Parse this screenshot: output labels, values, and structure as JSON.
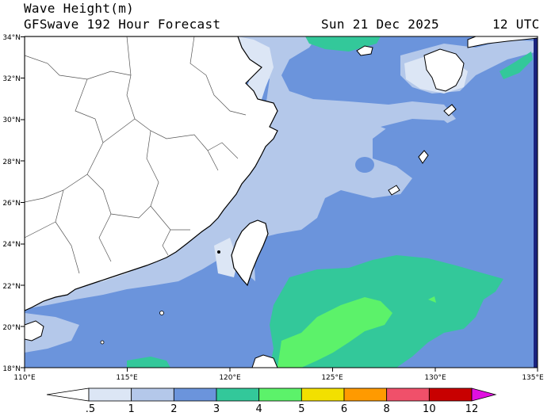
{
  "header": {
    "variable": "Wave Height(m)",
    "product": "GFSwave 192 Hour Forecast",
    "valid_date": "Sun 21 Dec 2025",
    "valid_time": "12 UTC"
  },
  "axes": {
    "lat_labels": [
      "34°N",
      "32°N",
      "30°N",
      "28°N",
      "26°N",
      "24°N",
      "22°N",
      "20°N",
      "18°N"
    ],
    "lon_labels": [
      "110°E",
      "115°E",
      "120°E",
      "125°E",
      "130°E",
      "135°E"
    ],
    "lat_range": [
      18,
      34
    ],
    "lon_range": [
      110,
      135
    ]
  },
  "colorbar": {
    "labels": [
      ".5",
      "1",
      "2",
      "3",
      "4",
      "5",
      "6",
      "8",
      "10",
      "12"
    ],
    "colors": [
      "#ffffff",
      "#dce6f5",
      "#b4c8ea",
      "#6b94dc",
      "#33c89a",
      "#5cf26a",
      "#f2e000",
      "#ff9a00",
      "#f0506a",
      "#c80000",
      "#e010e0"
    ]
  },
  "colors": {
    "land": "#ffffff",
    "border": "#555555",
    "coast": "#000000",
    "navy_edge": "#1a237e"
  }
}
